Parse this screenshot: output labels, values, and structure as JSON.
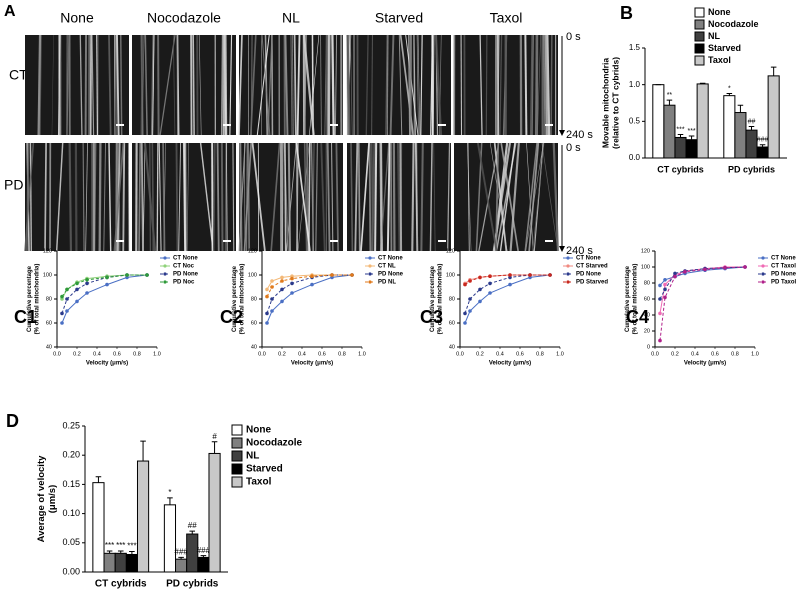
{
  "panel_a": {
    "label": "A",
    "columns": [
      "None",
      "Nocodazole",
      "NL",
      "Starved",
      "Taxol"
    ],
    "rows": [
      "CT",
      "PD"
    ],
    "time_labels": [
      "0 s",
      "240 s"
    ]
  },
  "chart_data": [
    {
      "type": "bar",
      "label": "B",
      "ylabel": [
        "Movable mitochondria",
        "(relative to CT cybrids)"
      ],
      "categories": [
        "CT cybrids",
        "PD cybrids"
      ],
      "ylim": [
        0,
        1.5
      ],
      "yticks": [
        {
          "value": 0,
          "label": "0.0"
        },
        0.5,
        {
          "value": 1,
          "label": "1.0"
        },
        1.5
      ],
      "series": [
        {
          "name": "None",
          "color": "#ffffff",
          "values": [
            1.0,
            0.85
          ],
          "errors": [
            0,
            0.03
          ],
          "annotations": [
            null,
            "*"
          ]
        },
        {
          "name": "Nocodazole",
          "color": "#808080",
          "values": [
            0.72,
            0.62
          ],
          "errors": [
            0.07,
            0.1
          ],
          "annotations": [
            "**",
            null
          ]
        },
        {
          "name": "NL",
          "color": "#404040",
          "values": [
            0.28,
            0.38
          ],
          "errors": [
            0.04,
            0.05
          ],
          "annotations": [
            "***",
            "##"
          ]
        },
        {
          "name": "Starved",
          "color": "#000000",
          "values": [
            0.25,
            0.15
          ],
          "errors": [
            0.05,
            0.03
          ],
          "annotations": [
            "***",
            "###"
          ]
        },
        {
          "name": "Taxol",
          "color": "#c8c8c8",
          "values": [
            1.01,
            1.12
          ],
          "errors": [
            0.01,
            0.12
          ],
          "annotations": [
            null,
            null
          ]
        }
      ]
    },
    {
      "type": "line",
      "label": "C1",
      "ylabel": [
        "Cumulative percentage",
        "(% of total mitochondria)"
      ],
      "xlabel": "Velocity (μm/s)",
      "x": [
        0.05,
        0.1,
        0.2,
        0.3,
        0.5,
        0.7,
        0.9
      ],
      "xlim": [
        0,
        1
      ],
      "xticks": [
        {
          "value": 0,
          "label": "0.0"
        },
        0.2,
        0.4,
        0.6,
        0.8,
        {
          "value": 1,
          "label": "1.0"
        }
      ],
      "ylim": [
        40,
        120
      ],
      "yticks": [
        40,
        60,
        80,
        100,
        120
      ],
      "series": [
        {
          "name": "CT None",
          "color": "#4a6fc4",
          "dashed": false,
          "values": [
            60,
            70,
            78,
            85,
            92,
            98,
            100
          ]
        },
        {
          "name": "CT Noc",
          "color": "#8fd27a",
          "dashed": false,
          "values": [
            80,
            88,
            94,
            97,
            99,
            100,
            100
          ]
        },
        {
          "name": "PD None",
          "color": "#2b3a8c",
          "dashed": true,
          "values": [
            68,
            80,
            88,
            93,
            98,
            100,
            100
          ]
        },
        {
          "name": "PD Noc",
          "color": "#2f9a3a",
          "dashed": true,
          "values": [
            82,
            88,
            93,
            96,
            98,
            100,
            100
          ]
        }
      ]
    },
    {
      "type": "line",
      "label": "C2",
      "ylabel": [
        "Cumulative percentage",
        "(% of total mitochondria)"
      ],
      "xlabel": "Velocity (μm/s)",
      "x": [
        0.05,
        0.1,
        0.2,
        0.3,
        0.5,
        0.7,
        0.9
      ],
      "xlim": [
        0,
        1
      ],
      "xticks": [
        {
          "value": 0,
          "label": "0.0"
        },
        0.2,
        0.4,
        0.6,
        0.8,
        {
          "value": 1,
          "label": "1.0"
        }
      ],
      "ylim": [
        40,
        120
      ],
      "yticks": [
        40,
        60,
        80,
        100,
        120
      ],
      "series": [
        {
          "name": "CT None",
          "color": "#4a6fc4",
          "dashed": false,
          "values": [
            60,
            70,
            78,
            85,
            92,
            98,
            100
          ]
        },
        {
          "name": "CT NL",
          "color": "#f3b877",
          "dashed": false,
          "values": [
            88,
            95,
            98,
            99,
            100,
            100,
            100
          ]
        },
        {
          "name": "PD None",
          "color": "#2b3a8c",
          "dashed": true,
          "values": [
            68,
            80,
            88,
            93,
            98,
            100,
            100
          ]
        },
        {
          "name": "PD NL",
          "color": "#e07a1c",
          "dashed": true,
          "values": [
            82,
            90,
            95,
            97,
            99,
            100,
            100
          ]
        }
      ]
    },
    {
      "type": "line",
      "label": "C3",
      "ylabel": [
        "Cumulative percentage",
        "(% of total mitochondria)"
      ],
      "xlabel": "Velocity (μm/s)",
      "x": [
        0.05,
        0.1,
        0.2,
        0.3,
        0.5,
        0.7,
        0.9
      ],
      "xlim": [
        0,
        1
      ],
      "xticks": [
        {
          "value": 0,
          "label": "0.0"
        },
        0.2,
        0.4,
        0.6,
        0.8,
        {
          "value": 1,
          "label": "1.0"
        }
      ],
      "ylim": [
        40,
        120
      ],
      "yticks": [
        40,
        60,
        80,
        100,
        120
      ],
      "series": [
        {
          "name": "CT None",
          "color": "#4a6fc4",
          "dashed": false,
          "values": [
            60,
            70,
            78,
            85,
            92,
            98,
            100
          ]
        },
        {
          "name": "CT Starved",
          "color": "#f08a80",
          "dashed": false,
          "values": [
            93,
            96,
            98,
            99,
            100,
            100,
            100
          ]
        },
        {
          "name": "PD None",
          "color": "#2b3a8c",
          "dashed": true,
          "values": [
            68,
            80,
            88,
            93,
            98,
            100,
            100
          ]
        },
        {
          "name": "PD Starved",
          "color": "#c8281e",
          "dashed": true,
          "values": [
            92,
            95,
            98,
            99,
            100,
            100,
            100
          ]
        }
      ]
    },
    {
      "type": "line",
      "label": "C4",
      "ylabel": [
        "Cumulative percentage",
        "(% of total mitochondria)"
      ],
      "xlabel": "Velocity (μm/s)",
      "x": [
        0.05,
        0.1,
        0.2,
        0.3,
        0.5,
        0.7,
        0.9
      ],
      "xlim": [
        0,
        1
      ],
      "xticks": [
        {
          "value": 0,
          "label": "0.0"
        },
        0.2,
        0.4,
        0.6,
        0.8,
        {
          "value": 1,
          "label": "1.0"
        }
      ],
      "ylim": [
        0,
        120
      ],
      "yticks": [
        0,
        20,
        40,
        60,
        80,
        100,
        120
      ],
      "series": [
        {
          "name": "CT None",
          "color": "#4a6fc4",
          "dashed": false,
          "values": [
            77,
            84,
            88,
            92,
            96,
            98,
            100
          ]
        },
        {
          "name": "CT Taxol",
          "color": "#f06ab4",
          "dashed": false,
          "values": [
            42,
            78,
            90,
            95,
            98,
            100,
            100
          ]
        },
        {
          "name": "PD None",
          "color": "#2b3a8c",
          "dashed": true,
          "values": [
            60,
            72,
            92,
            95,
            98,
            99,
            100
          ]
        },
        {
          "name": "PD Taxol",
          "color": "#b0208a",
          "dashed": true,
          "values": [
            8,
            62,
            88,
            94,
            97,
            99,
            100
          ]
        }
      ]
    },
    {
      "type": "bar",
      "label": "D",
      "ylabel": [
        "Average of velocity",
        "(μm/s)"
      ],
      "categories": [
        "CT cybrids",
        "PD cybrids"
      ],
      "ylim": [
        0,
        0.25
      ],
      "yticks": [
        {
          "value": 0,
          "label": "0.00"
        },
        {
          "value": 0.05,
          "label": "0.05"
        },
        {
          "value": 0.1,
          "label": "0.10"
        },
        {
          "value": 0.15,
          "label": "0.15"
        },
        {
          "value": 0.2,
          "label": "0.20"
        },
        {
          "value": 0.25,
          "label": "0.25"
        }
      ],
      "series": [
        {
          "name": "None",
          "color": "#ffffff",
          "values": [
            0.153,
            0.115
          ],
          "errors": [
            0.01,
            0.012
          ],
          "annotations": [
            null,
            "*"
          ]
        },
        {
          "name": "Nocodazole",
          "color": "#808080",
          "values": [
            0.032,
            0.022
          ],
          "errors": [
            0.004,
            0.003
          ],
          "annotations": [
            "***",
            "###"
          ]
        },
        {
          "name": "NL",
          "color": "#404040",
          "values": [
            0.032,
            0.065
          ],
          "errors": [
            0.004,
            0.005
          ],
          "annotations": [
            "***",
            "##"
          ]
        },
        {
          "name": "Starved",
          "color": "#000000",
          "values": [
            0.03,
            0.025
          ],
          "errors": [
            0.005,
            0.003
          ],
          "annotations": [
            "***",
            "###"
          ]
        },
        {
          "name": "Taxol",
          "color": "#c8c8c8",
          "values": [
            0.19,
            0.203
          ],
          "errors": [
            0.034,
            0.02
          ],
          "annotations": [
            null,
            "#"
          ]
        }
      ]
    }
  ]
}
